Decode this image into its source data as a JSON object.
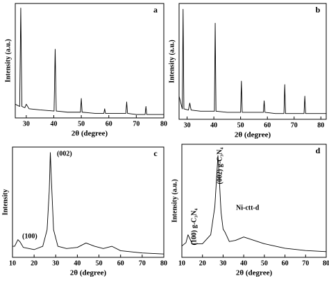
{
  "chart_data": [
    {
      "type": "line",
      "label": "a",
      "xlabel": "2θ (degree)",
      "ylabel": "Intensity (a.u.)",
      "color": "#000000",
      "xlim": [
        26,
        80
      ],
      "xticks": [
        30,
        40,
        50,
        60,
        70,
        80
      ],
      "ylim": [
        0,
        100
      ],
      "x": [
        26,
        27.6,
        28,
        28.4,
        29.5,
        30,
        31,
        35,
        40.1,
        40.5,
        40.9,
        45,
        49.7,
        50,
        50.3,
        55,
        58.2,
        58.5,
        58.8,
        62,
        66.2,
        66.5,
        66.8,
        70,
        73.2,
        73.5,
        73.8,
        80
      ],
      "values": [
        12,
        10,
        96,
        10,
        9,
        12,
        8,
        7,
        6,
        60,
        6,
        5,
        5,
        17,
        5,
        4,
        4,
        8,
        4,
        4,
        4,
        14,
        4,
        3,
        3,
        10,
        3,
        3
      ]
    },
    {
      "type": "line",
      "label": "b",
      "xlabel": "2θ (degree)",
      "ylabel": "Intensity (a.u.)",
      "color": "#000000",
      "xlim": [
        27,
        82
      ],
      "xticks": [
        30,
        40,
        50,
        60,
        70,
        80
      ],
      "ylim": [
        0,
        100
      ],
      "x": [
        27,
        28.2,
        28.5,
        28.8,
        30.5,
        31,
        31.5,
        35,
        40.2,
        40.5,
        40.8,
        45,
        50,
        50.3,
        50.6,
        55,
        58.5,
        58.8,
        59.1,
        63,
        66.2,
        66.5,
        66.8,
        70,
        73.7,
        74,
        74.3,
        82
      ],
      "values": [
        20,
        9,
        95,
        9,
        8,
        14,
        8,
        7,
        7,
        83,
        7,
        6,
        6,
        33,
        6,
        6,
        6,
        16,
        6,
        5,
        5,
        30,
        5,
        5,
        5,
        20,
        5,
        5
      ]
    },
    {
      "type": "line",
      "label": "c",
      "xlabel": "2θ (degree)",
      "ylabel": "Intensity",
      "color": "#000000",
      "xlim": [
        10,
        80
      ],
      "xticks": [
        10,
        20,
        30,
        40,
        50,
        60,
        70,
        80
      ],
      "ylim": [
        0,
        100
      ],
      "annotations": [
        "(100)",
        "(002)"
      ],
      "x": [
        10,
        11,
        12.5,
        13.5,
        15,
        20,
        24,
        26,
        27,
        27.5,
        28,
        29,
        31,
        35,
        40,
        44,
        48,
        52,
        56,
        60,
        70,
        80
      ],
      "values": [
        10,
        10,
        16,
        14,
        9,
        7,
        10,
        25,
        60,
        95,
        70,
        25,
        10,
        8,
        9,
        13,
        10,
        8,
        10,
        6,
        4,
        3
      ]
    },
    {
      "type": "line",
      "label": "d",
      "xlabel": "2θ (degree)",
      "ylabel": "Intensity (a.u.)",
      "color": "#000000",
      "xlim": [
        10,
        80
      ],
      "xticks": [
        10,
        20,
        30,
        40,
        50,
        60,
        70,
        80
      ],
      "ylim": [
        0,
        100
      ],
      "annotations": [
        "(100) g-C₃N₄",
        "(002) g-C₃N₄",
        "Ni-ctt-d"
      ],
      "x": [
        10,
        12,
        13,
        15,
        20,
        24,
        26,
        27,
        27.5,
        28,
        29,
        30,
        31,
        33,
        36,
        40,
        45,
        50,
        55,
        60,
        70,
        80
      ],
      "values": [
        10,
        13,
        20,
        12,
        12,
        20,
        45,
        75,
        90,
        75,
        40,
        25,
        22,
        14,
        15,
        18,
        15,
        12,
        10,
        8,
        6,
        5
      ]
    }
  ]
}
